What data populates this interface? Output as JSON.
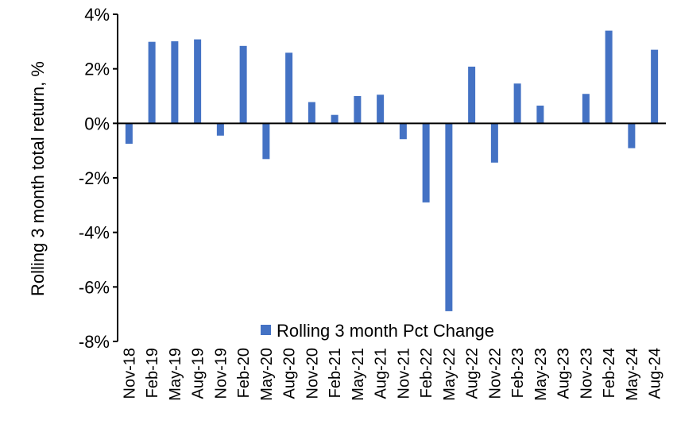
{
  "chart_data": {
    "type": "bar",
    "title": "",
    "xlabel": "",
    "ylabel": "Rolling 3 month total return, %",
    "ylim": [
      -8,
      4
    ],
    "yticks": [
      4,
      2,
      0,
      -2,
      -4,
      -6,
      -8
    ],
    "ytick_labels": [
      "4%",
      "2%",
      "0%",
      "-2%",
      "-4%",
      "-6%",
      "-8%"
    ],
    "grid": false,
    "legend_position": "bottom-center",
    "categories": [
      "Nov-18",
      "Feb-19",
      "May-19",
      "Aug-19",
      "Nov-19",
      "Feb-20",
      "May-20",
      "Aug-20",
      "Nov-20",
      "Feb-21",
      "May-21",
      "Aug-21",
      "Nov-21",
      "Feb-22",
      "May-22",
      "Aug-22",
      "Nov-22",
      "Feb-23",
      "May-23",
      "Aug-23",
      "Nov-23",
      "Feb-24",
      "May-24",
      "Aug-24"
    ],
    "series": [
      {
        "name": "Rolling 3 month Pct Change",
        "color": "#4472C4",
        "values": [
          -0.75,
          2.99,
          3.01,
          3.08,
          -0.45,
          2.84,
          -1.31,
          2.59,
          0.78,
          0.31,
          1.0,
          1.05,
          -0.58,
          -2.9,
          -6.89,
          2.08,
          -1.44,
          1.46,
          0.65,
          0.0,
          1.08,
          3.4,
          -0.91,
          2.7
        ]
      }
    ]
  }
}
